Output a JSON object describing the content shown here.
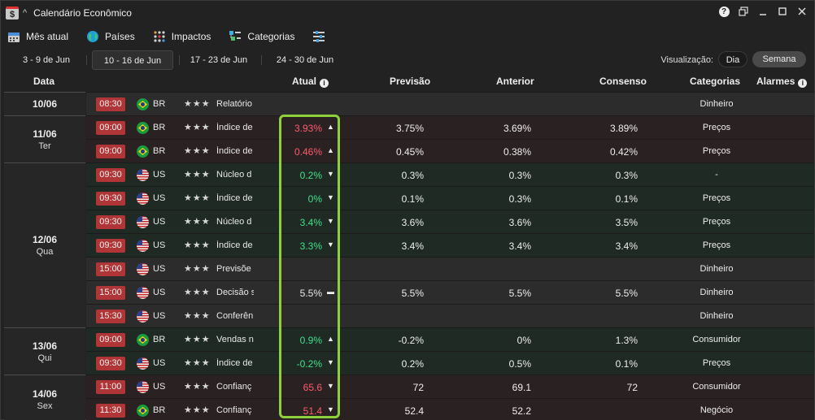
{
  "app": {
    "logo": "$",
    "title": "Calendário Econômico"
  },
  "toolbar": [
    {
      "label": "Mês atual",
      "icon": "calendar-icon"
    },
    {
      "label": "Países",
      "icon": "globe-icon"
    },
    {
      "label": "Impactos",
      "icon": "dots-grid-icon"
    },
    {
      "label": "Categorias",
      "icon": "categories-icon"
    },
    {
      "label": "",
      "icon": "filter-sliders-icon"
    }
  ],
  "weeks": [
    "3 - 9 de Jun",
    "10 - 16 de Jun",
    "17 - 23 de Jun",
    "24 - 30 de Jun"
  ],
  "active_week": 1,
  "view": {
    "label": "Visualização:",
    "day": "Dia",
    "week": "Semana",
    "selected": "Semana"
  },
  "columns": {
    "data": "Data",
    "atual": "Atual",
    "previsao": "Previsão",
    "anterior": "Anterior",
    "consenso": "Consenso",
    "categorias": "Categorias",
    "alarmes": "Alarmes"
  },
  "colors": {
    "up": "#ff5a6a",
    "down": "#3fe08a",
    "time_badge": "#b03536",
    "highlight": "#8ed03a"
  },
  "dates": [
    {
      "date": "10/06",
      "weekday": ""
    },
    {
      "date": "11/06",
      "weekday": "Ter"
    },
    {
      "date": "12/06",
      "weekday": "Qua"
    },
    {
      "date": "13/06",
      "weekday": "Qui"
    },
    {
      "date": "14/06",
      "weekday": "Sex"
    }
  ],
  "rows": [
    {
      "time": "08:30",
      "country": "BR",
      "stars": "★★★",
      "event": "Relatório",
      "actual": "",
      "arrow": "",
      "forecast": "",
      "previous": "",
      "consensus": "",
      "category": "Dinheiro",
      "trend": "neutral"
    },
    {
      "time": "09:00",
      "country": "BR",
      "stars": "★★★",
      "event": "Índice de",
      "actual": "3.93%",
      "arrow": "▲",
      "forecast": "3.75%",
      "previous": "3.69%",
      "consensus": "3.89%",
      "category": "Preços",
      "trend": "up"
    },
    {
      "time": "09:00",
      "country": "BR",
      "stars": "★★★",
      "event": "Índice de",
      "actual": "0.46%",
      "arrow": "▲",
      "forecast": "0.45%",
      "previous": "0.38%",
      "consensus": "0.42%",
      "category": "Preços",
      "trend": "up"
    },
    {
      "time": "09:30",
      "country": "US",
      "stars": "★★★",
      "event": "Núcleo d",
      "actual": "0.2%",
      "arrow": "▼",
      "forecast": "0.3%",
      "previous": "0.3%",
      "consensus": "0.3%",
      "category": "-",
      "trend": "down"
    },
    {
      "time": "09:30",
      "country": "US",
      "stars": "★★★",
      "event": "Índice de",
      "actual": "0%",
      "arrow": "▼",
      "forecast": "0.1%",
      "previous": "0.3%",
      "consensus": "0.1%",
      "category": "Preços",
      "trend": "down"
    },
    {
      "time": "09:30",
      "country": "US",
      "stars": "★★★",
      "event": "Núcleo d",
      "actual": "3.4%",
      "arrow": "▼",
      "forecast": "3.6%",
      "previous": "3.6%",
      "consensus": "3.5%",
      "category": "Preços",
      "trend": "down"
    },
    {
      "time": "09:30",
      "country": "US",
      "stars": "★★★",
      "event": "Índice de",
      "actual": "3.3%",
      "arrow": "▼",
      "forecast": "3.4%",
      "previous": "3.4%",
      "consensus": "3.4%",
      "category": "Preços",
      "trend": "down"
    },
    {
      "time": "15:00",
      "country": "US",
      "stars": "★★★",
      "event": "Previsõe",
      "actual": "",
      "arrow": "",
      "forecast": "",
      "previous": "",
      "consensus": "",
      "category": "Dinheiro",
      "trend": "neutral"
    },
    {
      "time": "15:00",
      "country": "US",
      "stars": "★★★",
      "event": "Decisão s",
      "actual": "5.5%",
      "arrow": "▬",
      "forecast": "5.5%",
      "previous": "5.5%",
      "consensus": "5.5%",
      "category": "Dinheiro",
      "trend": "neutral"
    },
    {
      "time": "15:30",
      "country": "US",
      "stars": "★★★",
      "event": "Conferên",
      "actual": "",
      "arrow": "",
      "forecast": "",
      "previous": "",
      "consensus": "",
      "category": "Dinheiro",
      "trend": "neutral"
    },
    {
      "time": "09:00",
      "country": "BR",
      "stars": "★★★",
      "event": "Vendas n",
      "actual": "0.9%",
      "arrow": "▲",
      "forecast": "-0.2%",
      "previous": "0%",
      "consensus": "1.3%",
      "category": "Consumidor",
      "trend": "down"
    },
    {
      "time": "09:30",
      "country": "US",
      "stars": "★★★",
      "event": "Índice de",
      "actual": "-0.2%",
      "arrow": "▼",
      "forecast": "0.2%",
      "previous": "0.5%",
      "consensus": "0.1%",
      "category": "Preços",
      "trend": "down"
    },
    {
      "time": "11:00",
      "country": "US",
      "stars": "★★★",
      "event": "Confianç",
      "actual": "65.6",
      "arrow": "▼",
      "forecast": "72",
      "previous": "69.1",
      "consensus": "72",
      "category": "Consumidor",
      "trend": "up"
    },
    {
      "time": "11:30",
      "country": "BR",
      "stars": "★★★",
      "event": "Confianç",
      "actual": "51.4",
      "arrow": "▼",
      "forecast": "52.4",
      "previous": "52.2",
      "consensus": "",
      "category": "Negócio",
      "trend": "up"
    }
  ]
}
